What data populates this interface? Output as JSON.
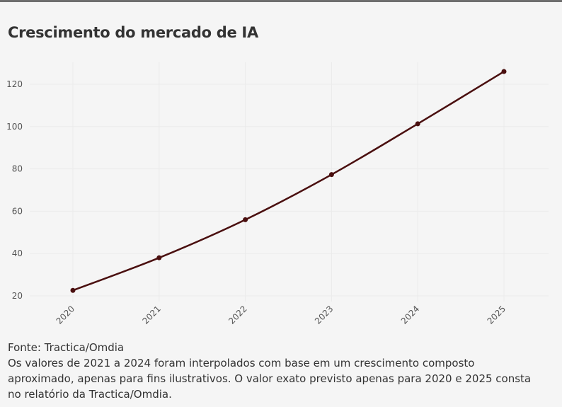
{
  "chart_data": {
    "type": "line",
    "title": "Crescimento do mercado de IA",
    "xlabel": "",
    "ylabel": "",
    "x": [
      "2020",
      "2021",
      "2022",
      "2023",
      "2024",
      "2025"
    ],
    "series": [
      {
        "values": [
          22.6,
          38.0,
          56.0,
          77.3,
          101.3,
          126.0
        ]
      }
    ],
    "yticks": [
      20,
      40,
      60,
      80,
      100,
      120
    ],
    "ylim": [
      20,
      130
    ],
    "grid": true,
    "legend": "none",
    "line_color": "#4a0f0f"
  },
  "footer": {
    "source": "Fonte: Tractica/Omdia",
    "note_lines": [
      "Os valores de 2021 a 2024 foram interpolados com base em um crescimento composto",
      "aproximado, apenas para fins ilustrativos. O valor exato previsto apenas para 2020 e 2025 consta",
      "no relatório da Tractica/Omdia."
    ]
  }
}
